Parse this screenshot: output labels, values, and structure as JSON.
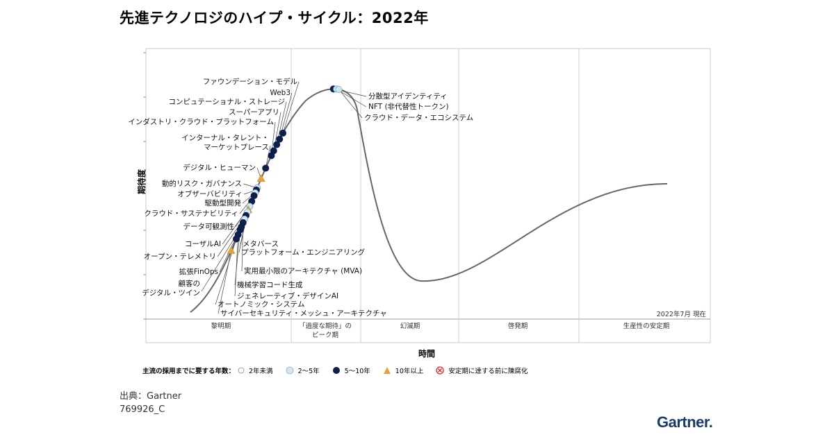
{
  "title": "先進テクノロジのハイプ・サイクル：2022年",
  "source": "出典：Gartner",
  "doc_id": "769926_C",
  "logo": "Gartner.",
  "date_note": "2022年7月 現在",
  "colors": {
    "curve": "#666666",
    "dark": "#0d1f4c",
    "light": "#cfe8f4",
    "orange": "#e8a33a"
  },
  "chart_data": {
    "type": "scatter",
    "title": "先進テクノロジのハイプ・サイクル：2022年",
    "xlabel": "時間",
    "ylabel": "期待度",
    "phases": [
      "黎明期",
      "「過度な期待」の\nピーク期",
      "幻滅期",
      "啓発期",
      "生産性の安定期"
    ],
    "legend": {
      "title": "主流の採用までに要する年数：",
      "items": [
        {
          "key": "lt2",
          "label": "2年未満"
        },
        {
          "key": "y2_5",
          "label": "2～5年"
        },
        {
          "key": "y5_10",
          "label": "5～10年"
        },
        {
          "key": "gt10",
          "label": "10年以上"
        },
        {
          "key": "obsolete",
          "label": "安定期に達する前に陳腐化"
        }
      ]
    },
    "technologies": [
      {
        "name": "ファウンデーション・モデル",
        "t": 0.265,
        "cat": "y5_10"
      },
      {
        "name": "Web3",
        "t": 0.256,
        "cat": "y5_10"
      },
      {
        "name": "コンピュテーショナル・ストレージ",
        "t": 0.248,
        "cat": "y5_10"
      },
      {
        "name": "スーパーアプリ",
        "t": 0.239,
        "cat": "y5_10"
      },
      {
        "name": "インダストリ・クラウド・プラットフォーム",
        "t": 0.232,
        "cat": "y5_10"
      },
      {
        "name": "インターナル・タレント・\nマーケットプレース",
        "t": 0.214,
        "cat": "y5_10"
      },
      {
        "name": "デジタル・ヒューマン",
        "t": 0.199,
        "cat": "gt10"
      },
      {
        "name": "動的リスク・ガバナンス",
        "t": 0.186,
        "cat": "y2_5"
      },
      {
        "name": "オブザーバビリティ",
        "t": 0.183,
        "cat": "y5_10"
      },
      {
        "name": "駆動型開発",
        "t": 0.179,
        "cat": "y2_5"
      },
      {
        "name": "クラウド・サステナビリティ",
        "t": 0.175,
        "cat": "y5_10"
      },
      {
        "name": "データ可観測性",
        "t": 0.167,
        "cat": "y5_10"
      },
      {
        "name": "コーザルAI",
        "t": 0.16,
        "cat": "y2_5"
      },
      {
        "name": "メタバース",
        "t": 0.155,
        "cat": "gt10"
      },
      {
        "name": "プラットフォーム・エンジニアリング",
        "t": 0.152,
        "cat": "y2_5"
      },
      {
        "name": "オープン・テレメトリ",
        "t": 0.147,
        "cat": "y5_10"
      },
      {
        "name": "拡張FinOps",
        "t": 0.142,
        "cat": "y2_5"
      },
      {
        "name": "実用最小限のアーキテクチャ (MVA)",
        "t": 0.137,
        "cat": "y5_10"
      },
      {
        "name": "顧客の\nデジタル・ツイン",
        "t": 0.131,
        "cat": "y5_10"
      },
      {
        "name": "機械学習コード生成",
        "t": 0.127,
        "cat": "y5_10"
      },
      {
        "name": "ジェネレーティブ・デザインAI",
        "t": 0.12,
        "cat": "y5_10"
      },
      {
        "name": "オートノミック・システム",
        "t": 0.114,
        "cat": "y5_10"
      },
      {
        "name": "サイバーセキュリティ・メッシュ・アーキテクチャ",
        "t": 0.097,
        "cat": "gt10"
      },
      {
        "name": "分散型アイデンティティ",
        "t": 0.357,
        "cat": "y5_10"
      },
      {
        "name": "NFT (非代替性トークン)",
        "t": 0.361,
        "cat": "y2_5"
      },
      {
        "name": "クラウド・データ・エコシステム",
        "t": 0.364,
        "cat": "y2_5"
      }
    ]
  }
}
